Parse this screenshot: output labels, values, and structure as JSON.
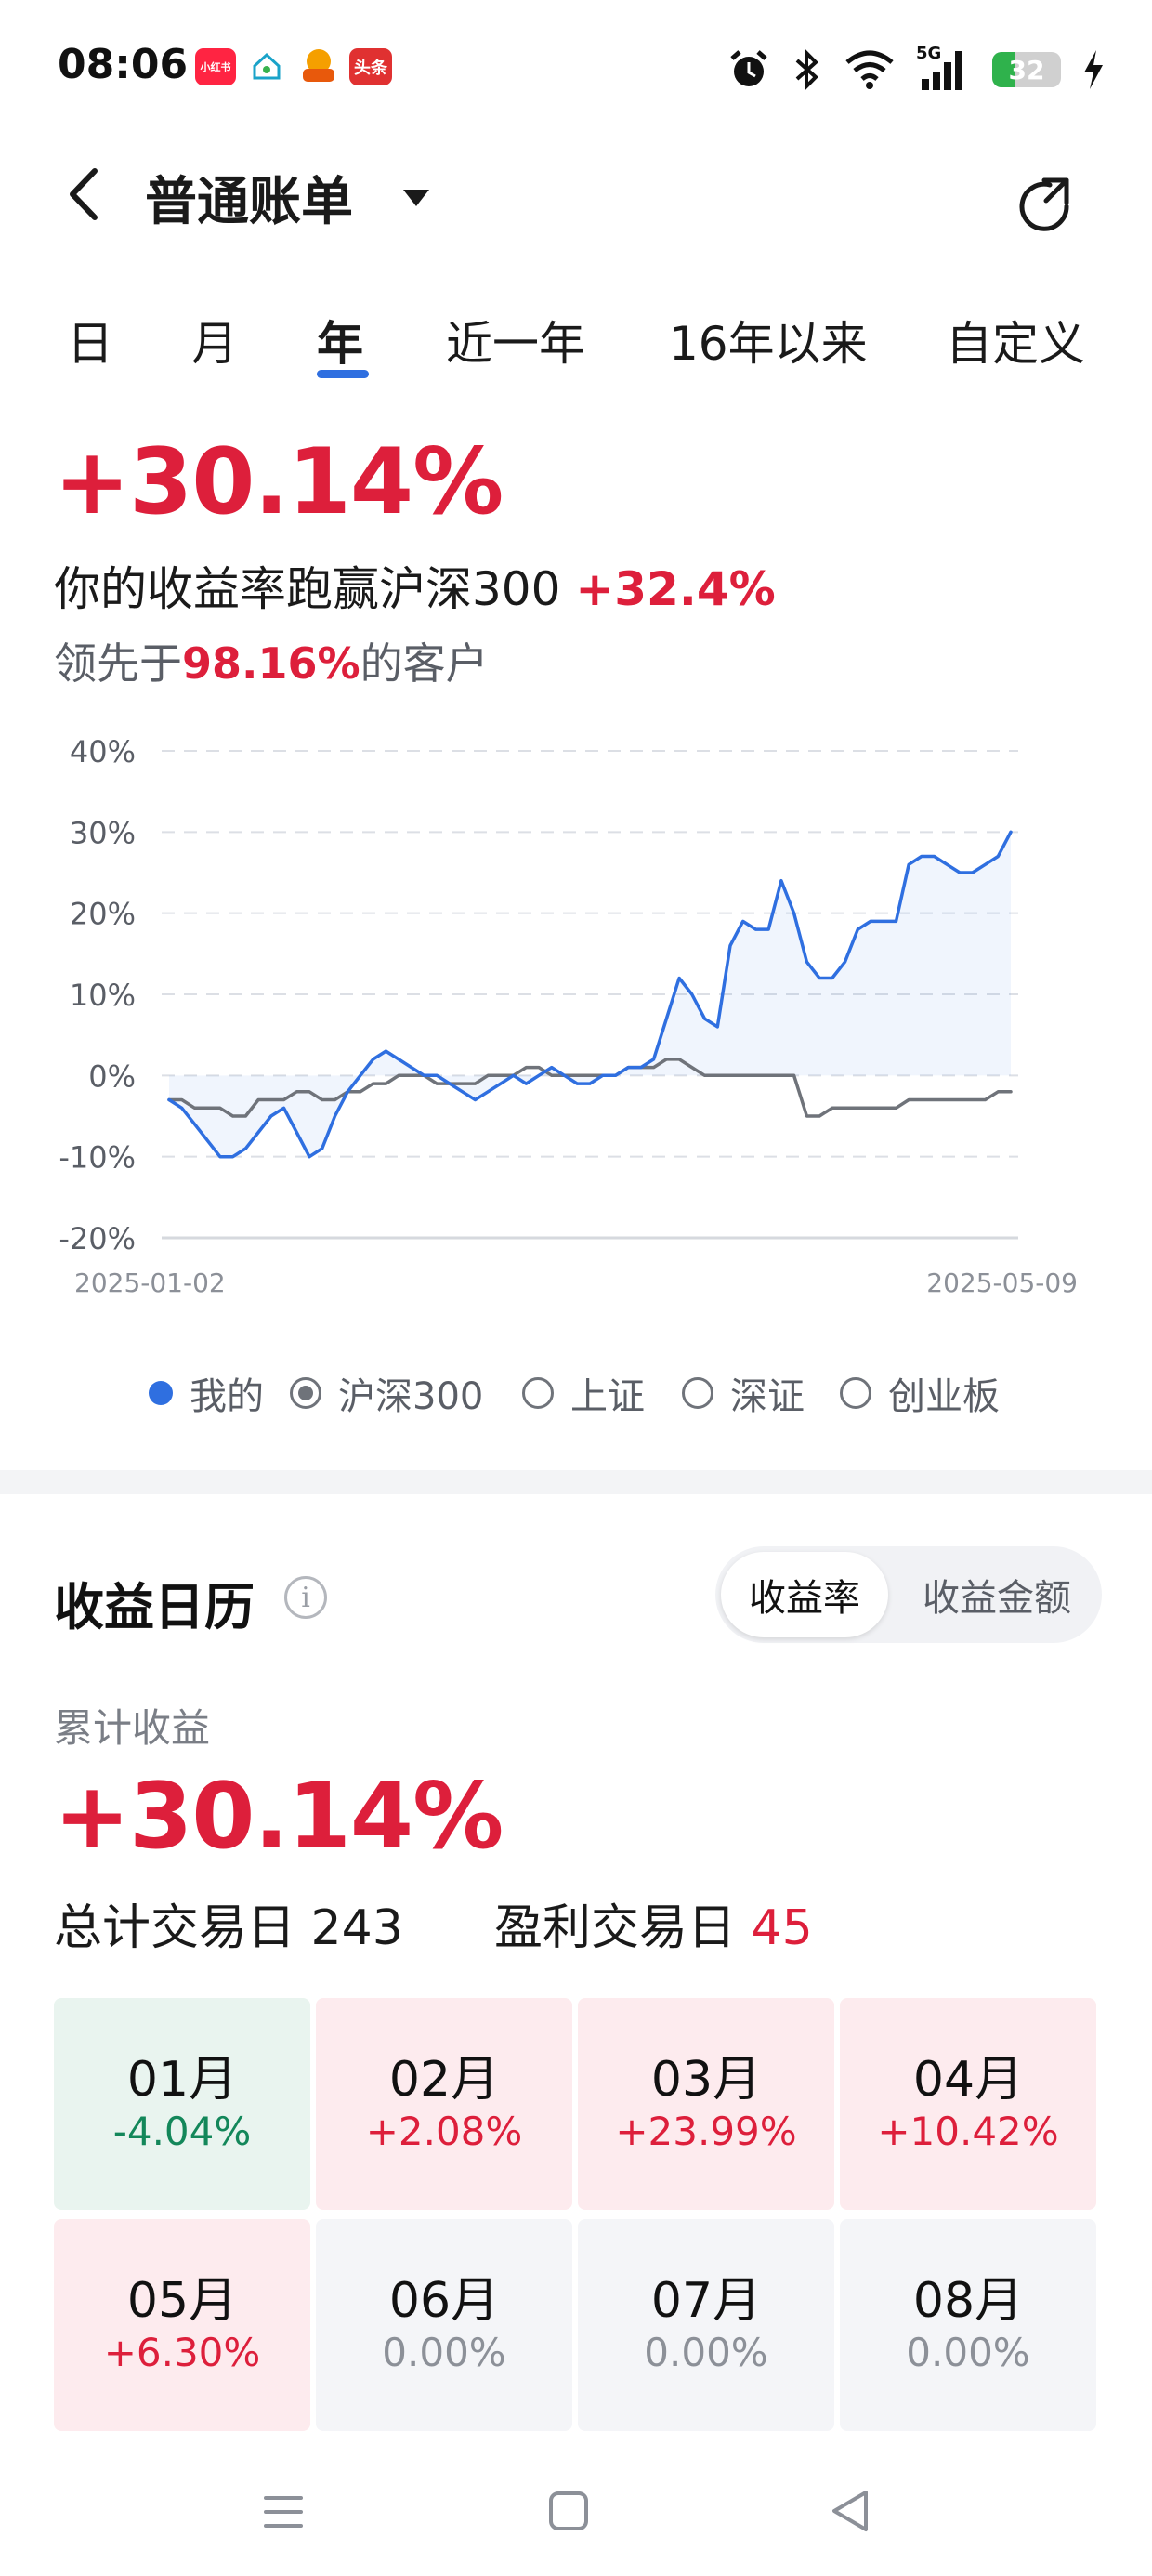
{
  "status_bar": {
    "time": "08:06",
    "apps": [
      "小红书",
      "",
      "",
      "头条"
    ],
    "network": "5G",
    "battery": "32",
    "battery_level": 0.32
  },
  "header": {
    "title": "普通账单"
  },
  "tabs": [
    {
      "label": "日",
      "active": false
    },
    {
      "label": "月",
      "active": false
    },
    {
      "label": "年",
      "active": true
    },
    {
      "label": "近一年",
      "active": false
    },
    {
      "label": "16年以来",
      "active": false
    },
    {
      "label": "自定义",
      "active": false
    }
  ],
  "summary": {
    "return": "+30.14%",
    "beat_prefix": "你的收益率跑赢沪深300",
    "beat_value": "+32.4%",
    "rank_prefix": "领先于",
    "rank_value": "98.16%",
    "rank_suffix": "的客户"
  },
  "chart_data": {
    "type": "line",
    "ylim": [
      -20,
      40
    ],
    "yticks": [
      "40%",
      "30%",
      "20%",
      "10%",
      "0%",
      "-10%",
      "-20%"
    ],
    "x_start": "2025-01-02",
    "x_end": "2025-05-09",
    "series": [
      {
        "name": "我的",
        "color": "#2f6fe0",
        "values": [
          -3,
          -4,
          -6,
          -8,
          -10,
          -10,
          -9,
          -7,
          -5,
          -4,
          -7,
          -10,
          -9,
          -5,
          -2,
          0,
          2,
          3,
          2,
          1,
          0,
          0,
          -1,
          -2,
          -3,
          -2,
          -1,
          0,
          -1,
          0,
          1,
          0,
          -1,
          -1,
          0,
          0,
          1,
          1,
          2,
          7,
          12,
          10,
          7,
          6,
          16,
          19,
          18,
          18,
          24,
          20,
          14,
          12,
          12,
          14,
          18,
          19,
          19,
          19,
          26,
          27,
          27,
          26,
          25,
          25,
          26,
          27,
          30
        ]
      },
      {
        "name": "沪深300",
        "color": "#6f737a",
        "values": [
          -3,
          -3,
          -4,
          -4,
          -4,
          -5,
          -5,
          -3,
          -3,
          -3,
          -2,
          -2,
          -3,
          -3,
          -2,
          -2,
          -1,
          -1,
          0,
          0,
          0,
          -1,
          -1,
          -1,
          -1,
          0,
          0,
          0,
          1,
          1,
          0,
          0,
          0,
          0,
          0,
          0,
          1,
          1,
          1,
          2,
          2,
          1,
          0,
          0,
          0,
          0,
          0,
          0,
          0,
          0,
          -5,
          -5,
          -4,
          -4,
          -4,
          -4,
          -4,
          -4,
          -3,
          -3,
          -3,
          -3,
          -3,
          -3,
          -3,
          -2,
          -2
        ]
      }
    ]
  },
  "legend": [
    {
      "label": "我的",
      "style": "dot"
    },
    {
      "label": "沪深300",
      "style": "ring-filled"
    },
    {
      "label": "上证",
      "style": "ring"
    },
    {
      "label": "深证",
      "style": "ring"
    },
    {
      "label": "创业板",
      "style": "ring"
    }
  ],
  "calendar": {
    "title": "收益日历",
    "toggle_active": "收益率",
    "toggle_inactive": "收益金额",
    "cum_label": "累计收益",
    "cum_value": "+30.14%",
    "total_label": "总计交易日",
    "total_value": "243",
    "profit_label": "盈利交易日",
    "profit_value": "45",
    "months": [
      {
        "month": "01月",
        "value": "-4.04%",
        "tone": "neg"
      },
      {
        "month": "02月",
        "value": "+2.08%",
        "tone": "pos"
      },
      {
        "month": "03月",
        "value": "+23.99%",
        "tone": "pos"
      },
      {
        "month": "04月",
        "value": "+10.42%",
        "tone": "pos"
      },
      {
        "month": "05月",
        "value": "+6.30%",
        "tone": "pos"
      },
      {
        "month": "06月",
        "value": "0.00%",
        "tone": "zero"
      },
      {
        "month": "07月",
        "value": "0.00%",
        "tone": "zero"
      },
      {
        "month": "08月",
        "value": "0.00%",
        "tone": "zero"
      }
    ]
  },
  "colors": {
    "accent": "#2f6fe0",
    "up": "#dd1f3b",
    "down": "#13875a"
  }
}
